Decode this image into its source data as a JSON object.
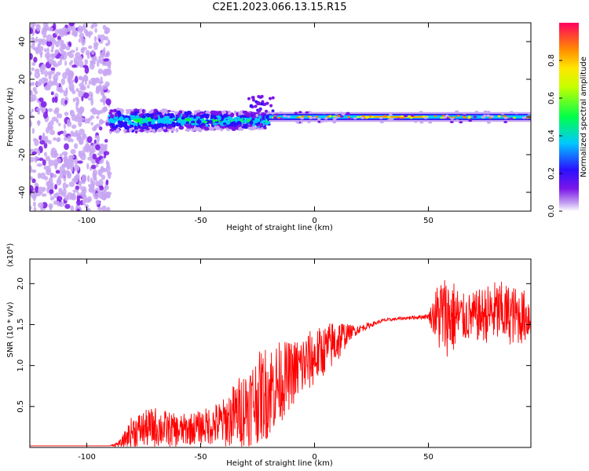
{
  "title": "C2E1.2023.066.13.15.R15",
  "chart_data": [
    {
      "type": "heatmap",
      "xlabel": "Height of straight line (km)",
      "ylabel": "Frequency (Hz)",
      "xlim": [
        -125,
        95
      ],
      "ylim": [
        -50,
        50
      ],
      "x_ticks": [
        -100,
        -50,
        0,
        50
      ],
      "y_ticks": [
        -40,
        -20,
        0,
        20,
        40
      ],
      "colorbar": {
        "label": "Normalized spectral amplitude",
        "range": [
          0,
          1
        ],
        "ticks": [
          0.0,
          0.2,
          0.4,
          0.6,
          0.8
        ]
      },
      "regions": [
        {
          "x": [
            -125,
            -90
          ],
          "description_level": "noise",
          "freq_spread": 50,
          "amplitude": 0.25
        },
        {
          "x": [
            -90,
            -20
          ],
          "center_freq": -2,
          "freq_spread": 6,
          "amplitude": 0.45
        },
        {
          "x": [
            -20,
            95
          ],
          "center_freq": 0,
          "freq_spread": 2,
          "amplitude": 0.95
        }
      ]
    },
    {
      "type": "line",
      "xlabel": "Height of straight line (km)",
      "ylabel": "SNR (10 * v/v)",
      "y_multiplier": "(x10⁴)",
      "xlim": [
        -125,
        95
      ],
      "ylim": [
        0,
        2.3
      ],
      "x_ticks": [
        -100,
        -50,
        0,
        50
      ],
      "y_ticks": [
        0.5,
        1.0,
        1.5,
        2.0
      ],
      "series": [
        {
          "color": "#ff0000",
          "envelope_x": [
            -125,
            -90,
            -85,
            -80,
            -70,
            -60,
            -50,
            -40,
            -30,
            -20,
            -15,
            -10,
            -5,
            0,
            5,
            10,
            15,
            20,
            25,
            30,
            40,
            50,
            55,
            60,
            65,
            70,
            80,
            90,
            95
          ],
          "envelope_y": [
            0.02,
            0.02,
            0.05,
            0.2,
            0.25,
            0.2,
            0.25,
            0.3,
            0.5,
            0.7,
            0.8,
            0.9,
            1.0,
            1.1,
            1.2,
            1.3,
            1.4,
            1.45,
            1.5,
            1.55,
            1.58,
            1.6,
            1.62,
            1.6,
            1.58,
            1.6,
            1.65,
            1.6,
            1.6
          ],
          "noise_amplitude": [
            0.0,
            0.0,
            0.05,
            0.2,
            0.25,
            0.2,
            0.2,
            0.3,
            0.5,
            0.6,
            0.5,
            0.4,
            0.4,
            0.35,
            0.3,
            0.3,
            0.1,
            0.05,
            0.03,
            0.02,
            0.02,
            0.03,
            0.5,
            0.5,
            0.3,
            0.3,
            0.4,
            0.35,
            0.3
          ]
        }
      ]
    }
  ]
}
